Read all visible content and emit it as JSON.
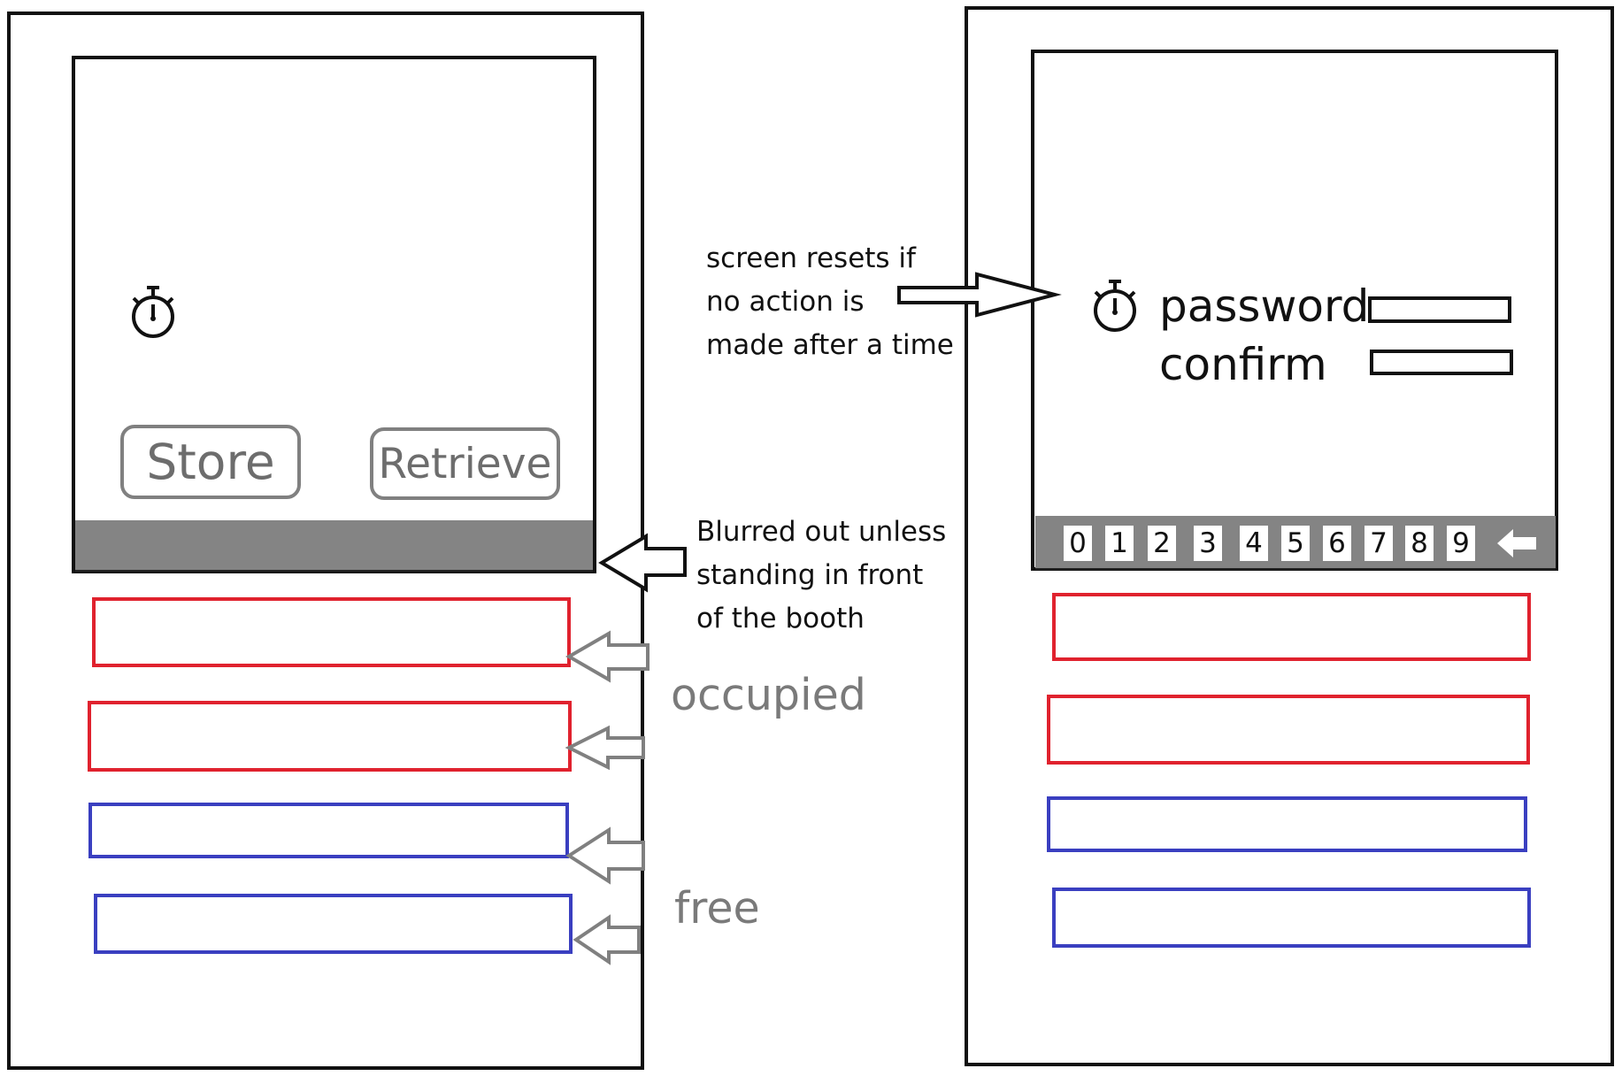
{
  "left_booth": {
    "buttons": {
      "store": "Store",
      "retrieve": "Retrieve"
    },
    "compartments": [
      {
        "status": "occupied",
        "color": "#e0222e"
      },
      {
        "status": "occupied",
        "color": "#e0222e"
      },
      {
        "status": "free",
        "color": "#3a3fc0"
      },
      {
        "status": "free",
        "color": "#3a3fc0"
      }
    ]
  },
  "right_booth": {
    "password_label": "password",
    "confirm_label": "confirm",
    "keypad": [
      "0",
      "1",
      "2",
      "3",
      "4",
      "5",
      "6",
      "7",
      "8",
      "9"
    ],
    "compartments": [
      {
        "status": "occupied",
        "color": "#e0222e"
      },
      {
        "status": "occupied",
        "color": "#e0222e"
      },
      {
        "status": "free",
        "color": "#3a3fc0"
      },
      {
        "status": "free",
        "color": "#3a3fc0"
      }
    ]
  },
  "annotations": {
    "timeout": "screen resets if\nno action is\nmade after a time",
    "blur": "Blurred out unless\nstanding in front\nof the booth",
    "occupied": "occupied",
    "free": "free"
  },
  "icons": {
    "timer": "stopwatch-icon",
    "backspace": "backspace-arrow-icon",
    "pointer": "hollow-arrow-icon"
  }
}
